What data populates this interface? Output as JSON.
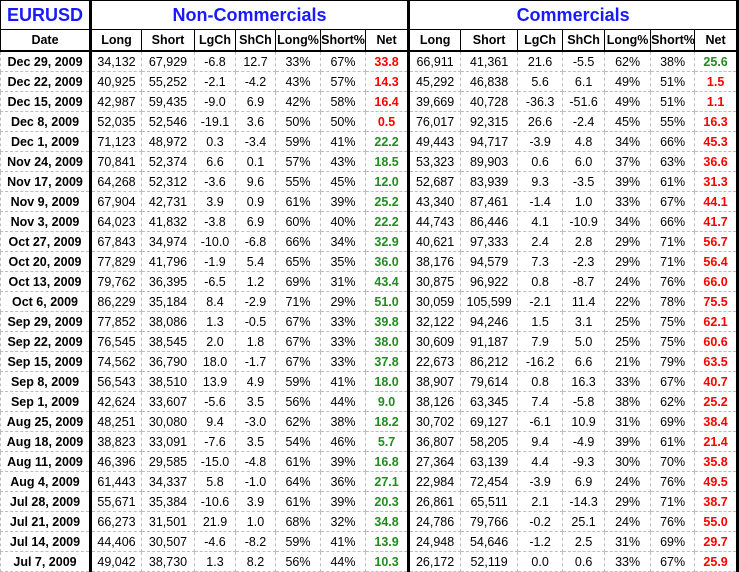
{
  "title": "EURUSD",
  "groups": {
    "left": "Non-Commercials",
    "right": "Commercials"
  },
  "headers": {
    "date": "Date",
    "cols": [
      "Long",
      "Short",
      "LgCh",
      "ShCh",
      "Long%",
      "Short%",
      "Net"
    ]
  },
  "colors": {
    "title": "#1a1aff",
    "net_short": "#ff0000",
    "net_long": "#228b22"
  },
  "rows": [
    {
      "date": "Dec 29, 2009",
      "nc": [
        "34,132",
        "67,929",
        "-6.8",
        "12.7",
        "33%",
        "67%",
        "33.8"
      ],
      "nc_dir": "short",
      "c": [
        "66,911",
        "41,361",
        "21.6",
        "-5.5",
        "62%",
        "38%",
        "25.6"
      ],
      "c_dir": "long"
    },
    {
      "date": "Dec 22, 2009",
      "nc": [
        "40,925",
        "55,252",
        "-2.1",
        "-4.2",
        "43%",
        "57%",
        "14.3"
      ],
      "nc_dir": "short",
      "c": [
        "45,292",
        "46,838",
        "5.6",
        "6.1",
        "49%",
        "51%",
        "1.5"
      ],
      "c_dir": "short"
    },
    {
      "date": "Dec 15, 2009",
      "nc": [
        "42,987",
        "59,435",
        "-9.0",
        "6.9",
        "42%",
        "58%",
        "16.4"
      ],
      "nc_dir": "short",
      "c": [
        "39,669",
        "40,728",
        "-36.3",
        "-51.6",
        "49%",
        "51%",
        "1.1"
      ],
      "c_dir": "short"
    },
    {
      "date": "Dec 8, 2009",
      "nc": [
        "52,035",
        "52,546",
        "-19.1",
        "3.6",
        "50%",
        "50%",
        "0.5"
      ],
      "nc_dir": "short",
      "c": [
        "76,017",
        "92,315",
        "26.6",
        "-2.4",
        "45%",
        "55%",
        "16.3"
      ],
      "c_dir": "short"
    },
    {
      "date": "Dec 1, 2009",
      "nc": [
        "71,123",
        "48,972",
        "0.3",
        "-3.4",
        "59%",
        "41%",
        "22.2"
      ],
      "nc_dir": "long",
      "c": [
        "49,443",
        "94,717",
        "-3.9",
        "4.8",
        "34%",
        "66%",
        "45.3"
      ],
      "c_dir": "short"
    },
    {
      "date": "Nov 24, 2009",
      "nc": [
        "70,841",
        "52,374",
        "6.6",
        "0.1",
        "57%",
        "43%",
        "18.5"
      ],
      "nc_dir": "long",
      "c": [
        "53,323",
        "89,903",
        "0.6",
        "6.0",
        "37%",
        "63%",
        "36.6"
      ],
      "c_dir": "short"
    },
    {
      "date": "Nov 17, 2009",
      "nc": [
        "64,268",
        "52,312",
        "-3.6",
        "9.6",
        "55%",
        "45%",
        "12.0"
      ],
      "nc_dir": "long",
      "c": [
        "52,687",
        "83,939",
        "9.3",
        "-3.5",
        "39%",
        "61%",
        "31.3"
      ],
      "c_dir": "short"
    },
    {
      "date": "Nov 9, 2009",
      "nc": [
        "67,904",
        "42,731",
        "3.9",
        "0.9",
        "61%",
        "39%",
        "25.2"
      ],
      "nc_dir": "long",
      "c": [
        "43,340",
        "87,461",
        "-1.4",
        "1.0",
        "33%",
        "67%",
        "44.1"
      ],
      "c_dir": "short"
    },
    {
      "date": "Nov 3, 2009",
      "nc": [
        "64,023",
        "41,832",
        "-3.8",
        "6.9",
        "60%",
        "40%",
        "22.2"
      ],
      "nc_dir": "long",
      "c": [
        "44,743",
        "86,446",
        "4.1",
        "-10.9",
        "34%",
        "66%",
        "41.7"
      ],
      "c_dir": "short"
    },
    {
      "date": "Oct 27, 2009",
      "nc": [
        "67,843",
        "34,974",
        "-10.0",
        "-6.8",
        "66%",
        "34%",
        "32.9"
      ],
      "nc_dir": "long",
      "c": [
        "40,621",
        "97,333",
        "2.4",
        "2.8",
        "29%",
        "71%",
        "56.7"
      ],
      "c_dir": "short"
    },
    {
      "date": "Oct 20, 2009",
      "nc": [
        "77,829",
        "41,796",
        "-1.9",
        "5.4",
        "65%",
        "35%",
        "36.0"
      ],
      "nc_dir": "long",
      "c": [
        "38,176",
        "94,579",
        "7.3",
        "-2.3",
        "29%",
        "71%",
        "56.4"
      ],
      "c_dir": "short"
    },
    {
      "date": "Oct 13, 2009",
      "nc": [
        "79,762",
        "36,395",
        "-6.5",
        "1.2",
        "69%",
        "31%",
        "43.4"
      ],
      "nc_dir": "long",
      "c": [
        "30,875",
        "96,922",
        "0.8",
        "-8.7",
        "24%",
        "76%",
        "66.0"
      ],
      "c_dir": "short"
    },
    {
      "date": "Oct 6, 2009",
      "nc": [
        "86,229",
        "35,184",
        "8.4",
        "-2.9",
        "71%",
        "29%",
        "51.0"
      ],
      "nc_dir": "long",
      "c": [
        "30,059",
        "105,599",
        "-2.1",
        "11.4",
        "22%",
        "78%",
        "75.5"
      ],
      "c_dir": "short"
    },
    {
      "date": "Sep 29, 2009",
      "nc": [
        "77,852",
        "38,086",
        "1.3",
        "-0.5",
        "67%",
        "33%",
        "39.8"
      ],
      "nc_dir": "long",
      "c": [
        "32,122",
        "94,246",
        "1.5",
        "3.1",
        "25%",
        "75%",
        "62.1"
      ],
      "c_dir": "short"
    },
    {
      "date": "Sep 22, 2009",
      "nc": [
        "76,545",
        "38,545",
        "2.0",
        "1.8",
        "67%",
        "33%",
        "38.0"
      ],
      "nc_dir": "long",
      "c": [
        "30,609",
        "91,187",
        "7.9",
        "5.0",
        "25%",
        "75%",
        "60.6"
      ],
      "c_dir": "short"
    },
    {
      "date": "Sep 15, 2009",
      "nc": [
        "74,562",
        "36,790",
        "18.0",
        "-1.7",
        "67%",
        "33%",
        "37.8"
      ],
      "nc_dir": "long",
      "c": [
        "22,673",
        "86,212",
        "-16.2",
        "6.6",
        "21%",
        "79%",
        "63.5"
      ],
      "c_dir": "short"
    },
    {
      "date": "Sep 8, 2009",
      "nc": [
        "56,543",
        "38,510",
        "13.9",
        "4.9",
        "59%",
        "41%",
        "18.0"
      ],
      "nc_dir": "long",
      "c": [
        "38,907",
        "79,614",
        "0.8",
        "16.3",
        "33%",
        "67%",
        "40.7"
      ],
      "c_dir": "short"
    },
    {
      "date": "Sep 1, 2009",
      "nc": [
        "42,624",
        "33,607",
        "-5.6",
        "3.5",
        "56%",
        "44%",
        "9.0"
      ],
      "nc_dir": "long",
      "c": [
        "38,126",
        "63,345",
        "7.4",
        "-5.8",
        "38%",
        "62%",
        "25.2"
      ],
      "c_dir": "short"
    },
    {
      "date": "Aug 25, 2009",
      "nc": [
        "48,251",
        "30,080",
        "9.4",
        "-3.0",
        "62%",
        "38%",
        "18.2"
      ],
      "nc_dir": "long",
      "c": [
        "30,702",
        "69,127",
        "-6.1",
        "10.9",
        "31%",
        "69%",
        "38.4"
      ],
      "c_dir": "short"
    },
    {
      "date": "Aug 18, 2009",
      "nc": [
        "38,823",
        "33,091",
        "-7.6",
        "3.5",
        "54%",
        "46%",
        "5.7"
      ],
      "nc_dir": "long",
      "c": [
        "36,807",
        "58,205",
        "9.4",
        "-4.9",
        "39%",
        "61%",
        "21.4"
      ],
      "c_dir": "short"
    },
    {
      "date": "Aug 11, 2009",
      "nc": [
        "46,396",
        "29,585",
        "-15.0",
        "-4.8",
        "61%",
        "39%",
        "16.8"
      ],
      "nc_dir": "long",
      "c": [
        "27,364",
        "63,139",
        "4.4",
        "-9.3",
        "30%",
        "70%",
        "35.8"
      ],
      "c_dir": "short"
    },
    {
      "date": "Aug 4, 2009",
      "nc": [
        "61,443",
        "34,337",
        "5.8",
        "-1.0",
        "64%",
        "36%",
        "27.1"
      ],
      "nc_dir": "long",
      "c": [
        "22,984",
        "72,454",
        "-3.9",
        "6.9",
        "24%",
        "76%",
        "49.5"
      ],
      "c_dir": "short"
    },
    {
      "date": "Jul 28, 2009",
      "nc": [
        "55,671",
        "35,384",
        "-10.6",
        "3.9",
        "61%",
        "39%",
        "20.3"
      ],
      "nc_dir": "long",
      "c": [
        "26,861",
        "65,511",
        "2.1",
        "-14.3",
        "29%",
        "71%",
        "38.7"
      ],
      "c_dir": "short"
    },
    {
      "date": "Jul 21, 2009",
      "nc": [
        "66,273",
        "31,501",
        "21.9",
        "1.0",
        "68%",
        "32%",
        "34.8"
      ],
      "nc_dir": "long",
      "c": [
        "24,786",
        "79,766",
        "-0.2",
        "25.1",
        "24%",
        "76%",
        "55.0"
      ],
      "c_dir": "short"
    },
    {
      "date": "Jul 14, 2009",
      "nc": [
        "44,406",
        "30,507",
        "-4.6",
        "-8.2",
        "59%",
        "41%",
        "13.9"
      ],
      "nc_dir": "long",
      "c": [
        "24,948",
        "54,646",
        "-1.2",
        "2.5",
        "31%",
        "69%",
        "29.7"
      ],
      "c_dir": "short"
    },
    {
      "date": "Jul 7, 2009",
      "nc": [
        "49,042",
        "38,730",
        "1.3",
        "8.2",
        "56%",
        "44%",
        "10.3"
      ],
      "nc_dir": "long",
      "c": [
        "26,172",
        "52,119",
        "0.0",
        "0.6",
        "33%",
        "67%",
        "25.9"
      ],
      "c_dir": "short"
    }
  ]
}
